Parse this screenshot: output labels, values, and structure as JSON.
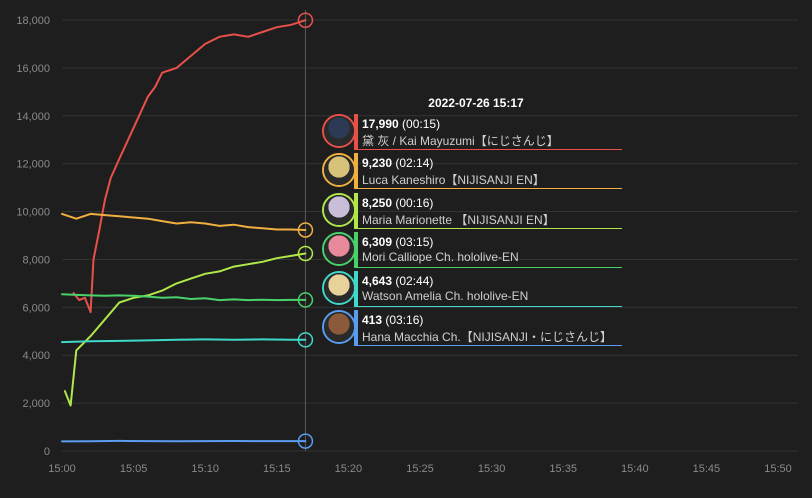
{
  "chart_data": {
    "type": "line",
    "x_ticks": [
      "15:00",
      "15:05",
      "15:10",
      "15:15",
      "15:20",
      "15:25",
      "15:30",
      "15:35",
      "15:40",
      "15:45",
      "15:50"
    ],
    "y_ticks": [
      "0",
      "2,000",
      "4,000",
      "6,000",
      "8,000",
      "10,000",
      "12,000",
      "14,000",
      "16,000",
      "18,000"
    ],
    "xlim_minutes": [
      0,
      50
    ],
    "ylim": [
      0,
      18000
    ],
    "grid": true,
    "cursor_minute": 17,
    "series": [
      {
        "name": "黛 灰 / Kai Mayuzumi【にじさんじ】",
        "color": "#e8514a",
        "x": [
          0.8,
          1.2,
          1.6,
          2.0,
          2.2,
          2.6,
          3.0,
          3.4,
          4.0,
          5.0,
          6.0,
          6.5,
          7.0,
          8.0,
          9.0,
          10.0,
          11.0,
          12.0,
          13.0,
          14.0,
          15.0,
          16.0,
          17.0
        ],
        "y": [
          6600,
          6300,
          6400,
          5800,
          8000,
          9200,
          10500,
          11400,
          12200,
          13500,
          14800,
          15200,
          15800,
          16000,
          16500,
          17000,
          17300,
          17400,
          17300,
          17500,
          17700,
          17800,
          17990
        ]
      },
      {
        "name": "Luca Kaneshiro【NIJISANJI EN】",
        "color": "#f0b040",
        "x": [
          0,
          1,
          2,
          3,
          4,
          5,
          6,
          7,
          8,
          9,
          10,
          11,
          12,
          13,
          14,
          15,
          16,
          17
        ],
        "y": [
          9900,
          9700,
          9900,
          9850,
          9800,
          9750,
          9700,
          9600,
          9500,
          9550,
          9500,
          9400,
          9450,
          9350,
          9300,
          9250,
          9250,
          9230
        ]
      },
      {
        "name": "Maria Marionette 【NIJISANJI EN】",
        "color": "#b0e84a",
        "x": [
          0.2,
          0.6,
          1.0,
          2.0,
          3.0,
          4.0,
          5.0,
          6.0,
          7.0,
          8.0,
          9.0,
          10.0,
          11.0,
          12.0,
          13.0,
          14.0,
          15.0,
          16.0,
          17.0
        ],
        "y": [
          2500,
          1900,
          4200,
          4800,
          5500,
          6200,
          6400,
          6500,
          6700,
          7000,
          7200,
          7400,
          7500,
          7700,
          7800,
          7900,
          8050,
          8150,
          8250
        ]
      },
      {
        "name": "Mori Calliope Ch. hololive-EN",
        "color": "#4ad26a",
        "x": [
          0,
          1,
          2,
          3,
          4,
          5,
          6,
          7,
          8,
          9,
          10,
          11,
          12,
          13,
          14,
          15,
          16,
          17
        ],
        "y": [
          6550,
          6520,
          6500,
          6480,
          6500,
          6480,
          6450,
          6400,
          6420,
          6350,
          6380,
          6300,
          6330,
          6300,
          6320,
          6300,
          6310,
          6309
        ]
      },
      {
        "name": "Watson Amelia Ch. hololive-EN",
        "color": "#40d8c8",
        "x": [
          0,
          2,
          4,
          6,
          8,
          10,
          12,
          14,
          16,
          17
        ],
        "y": [
          4550,
          4580,
          4600,
          4620,
          4650,
          4660,
          4650,
          4660,
          4650,
          4643
        ]
      },
      {
        "name": "Hana Macchia Ch.【NIJISANJI・にじさんじ】",
        "color": "#5a9cf0",
        "x": [
          0,
          2,
          4,
          6,
          8,
          10,
          12,
          14,
          16,
          17
        ],
        "y": [
          400,
          410,
          420,
          415,
          410,
          415,
          418,
          414,
          413,
          413
        ]
      }
    ]
  },
  "tooltip": {
    "time": "2022-07-26 15:17",
    "rows": [
      {
        "value": "17,990",
        "duration": "(00:15)",
        "name": "黛 灰 / Kai Mayuzumi【にじさんじ】",
        "color": "#e8514a",
        "avatar_color": "#2c3a55"
      },
      {
        "value": "9,230",
        "duration": "(02:14)",
        "name": "Luca Kaneshiro【NIJISANJI EN】",
        "color": "#f0b040",
        "avatar_color": "#d8c27a"
      },
      {
        "value": "8,250",
        "duration": "(00:16)",
        "name": "Maria Marionette 【NIJISANJI EN】",
        "color": "#b0e84a",
        "avatar_color": "#c8bed8"
      },
      {
        "value": "6,309",
        "duration": "(03:15)",
        "name": "Mori Calliope Ch. hololive-EN",
        "color": "#4ad26a",
        "avatar_color": "#e88a9c"
      },
      {
        "value": "4,643",
        "duration": "(02:44)",
        "name": "Watson Amelia Ch. hololive-EN",
        "color": "#40d8c8",
        "avatar_color": "#e6d29a"
      },
      {
        "value": "413",
        "duration": "(03:16)",
        "name": "Hana Macchia Ch.【NIJISANJI・にじさんじ】",
        "color": "#5a9cf0",
        "avatar_color": "#8a5a3a"
      }
    ]
  }
}
